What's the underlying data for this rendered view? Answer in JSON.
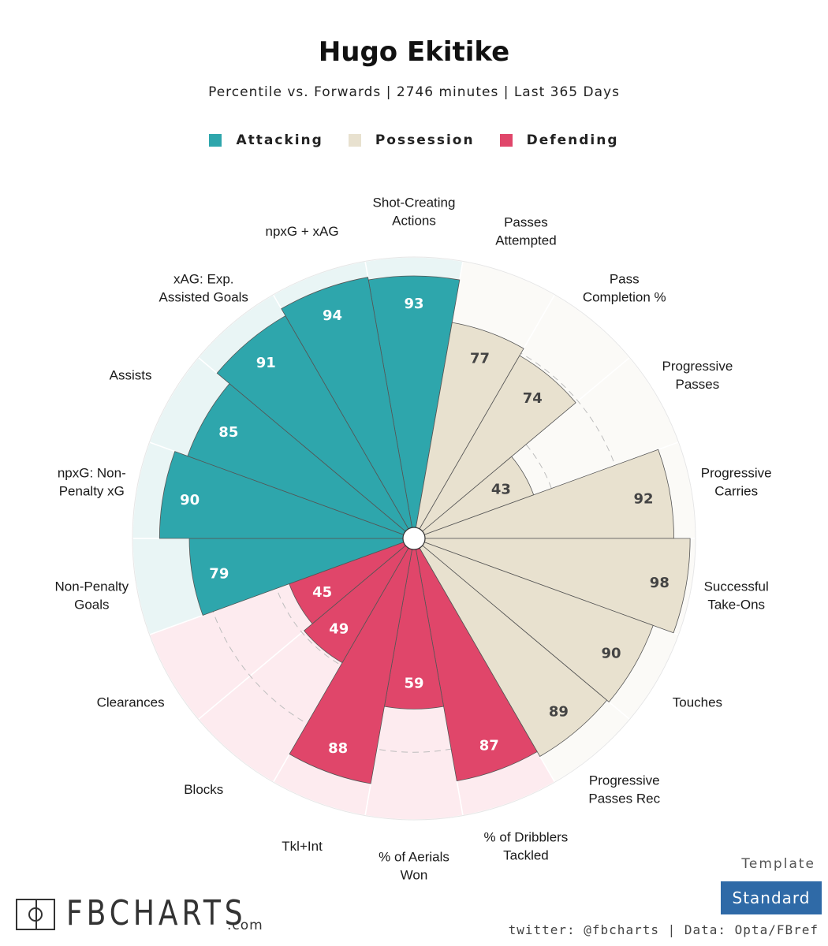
{
  "title": "Hugo Ekitike",
  "subtitle": "Percentile vs. Forwards | 2746 minutes | Last 365 Days",
  "legend": [
    {
      "label": "Attacking",
      "color": "#2ea6ac"
    },
    {
      "label": "Possession",
      "color": "#e8e1cf"
    },
    {
      "label": "Defending",
      "color": "#e0466a"
    }
  ],
  "chart_data": {
    "type": "polar-bar",
    "max": 100,
    "categories": [
      {
        "label": "Shot-Creating Actions",
        "value": 93,
        "group": "Attacking"
      },
      {
        "label": "Passes Attempted",
        "value": 77,
        "group": "Possession"
      },
      {
        "label": "Pass Completion %",
        "value": 74,
        "group": "Possession"
      },
      {
        "label": "Progressive Passes",
        "value": 43,
        "group": "Possession"
      },
      {
        "label": "Progressive Carries",
        "value": 92,
        "group": "Possession"
      },
      {
        "label": "Successful Take-Ons",
        "value": 98,
        "group": "Possession"
      },
      {
        "label": "Touches",
        "value": 90,
        "group": "Possession"
      },
      {
        "label": "Progressive Passes Rec",
        "value": 89,
        "group": "Possession"
      },
      {
        "label": "% of Dribblers Tackled",
        "value": 87,
        "group": "Defending"
      },
      {
        "label": "% of Aerials Won",
        "value": 59,
        "group": "Defending"
      },
      {
        "label": "Tkl+Int",
        "value": 88,
        "group": "Defending"
      },
      {
        "label": "Blocks",
        "value": 49,
        "group": "Defending"
      },
      {
        "label": "Clearances",
        "value": 45,
        "group": "Defending"
      },
      {
        "label": "Non-Penalty Goals",
        "value": 79,
        "group": "Attacking"
      },
      {
        "label": "npxG: Non-Penalty xG",
        "value": 90,
        "group": "Attacking"
      },
      {
        "label": "Assists",
        "value": 85,
        "group": "Attacking"
      },
      {
        "label": "xAG: Exp. Assisted Goals",
        "value": 91,
        "group": "Attacking"
      },
      {
        "label": "npxG + xAG",
        "value": 94,
        "group": "Attacking"
      }
    ],
    "labels_wrapped": [
      [
        "Shot-Creating",
        "Actions"
      ],
      [
        "Passes",
        "Attempted"
      ],
      [
        "Pass",
        "Completion %"
      ],
      [
        "Progressive",
        "Passes"
      ],
      [
        "Progressive",
        "Carries"
      ],
      [
        "Successful",
        "Take-Ons"
      ],
      [
        "Touches"
      ],
      [
        "Progressive",
        "Passes Rec"
      ],
      [
        "% of Dribblers",
        "Tackled"
      ],
      [
        "% of Aerials",
        "Won"
      ],
      [
        "Tkl+Int"
      ],
      [
        "Blocks"
      ],
      [
        "Clearances"
      ],
      [
        "Non-Penalty",
        "Goals"
      ],
      [
        "npxG: Non-",
        "Penalty xG"
      ],
      [
        "Assists"
      ],
      [
        "xAG: Exp.",
        "Assisted Goals"
      ],
      [
        "npxG + xAG"
      ]
    ],
    "colors": {
      "Attacking": {
        "bar": "#2ea6ac",
        "bg": "#e9f5f5"
      },
      "Possession": {
        "bar": "#e8e1cf",
        "bg": "#fbfaf7"
      },
      "Defending": {
        "bar": "#e0466a",
        "bg": "#fdebef"
      }
    }
  },
  "footer": {
    "logo": "FBCHARTS",
    "logo_suffix": ".com",
    "template_label": "Template",
    "template_value": "Standard",
    "credit": "twitter: @fbcharts | Data: Opta/FBref"
  }
}
